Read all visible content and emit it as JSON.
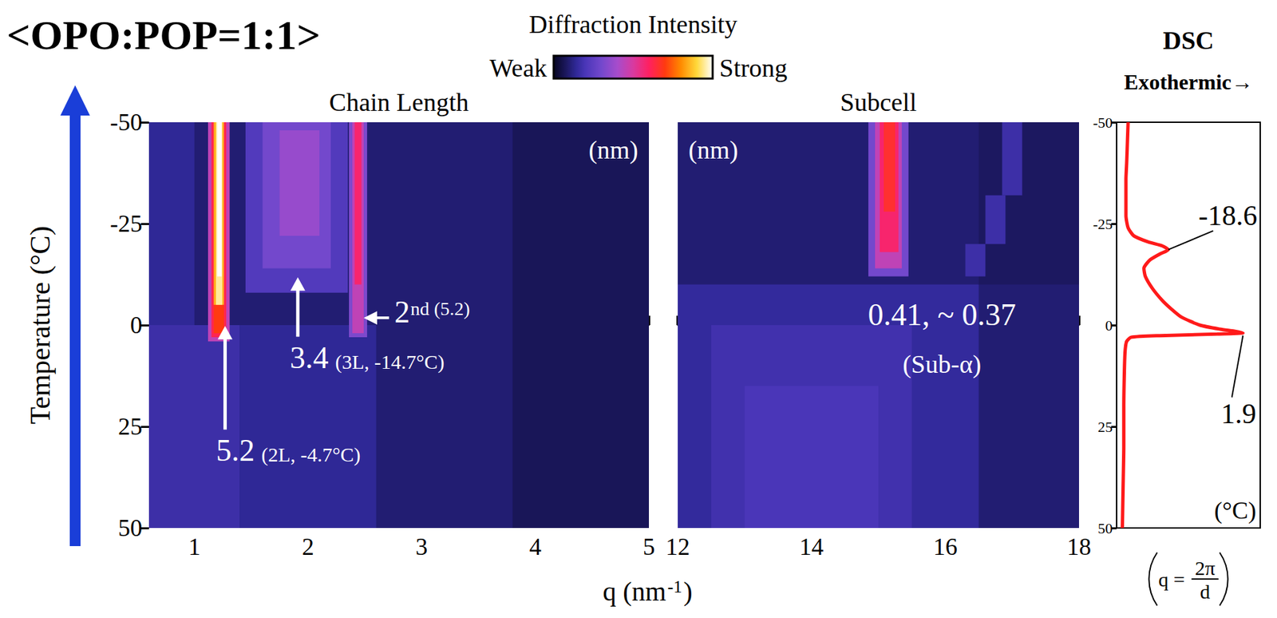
{
  "title": "<OPO:POP=1:1>",
  "color_bar": {
    "label": "Diffraction Intensity",
    "min_label": "Weak",
    "max_label": "Strong",
    "range": [
      0,
      1
    ]
  },
  "xlabel": [
    "q (nm",
    "-1",
    ")"
  ],
  "formula": {
    "lhs": "q =",
    "numerator": "2π",
    "denominator": "d"
  },
  "chart_data": [
    {
      "type": "heatmap",
      "title": "Chain Length",
      "unit_label": "(nm)",
      "ylabel": "Temperature (°C)",
      "xlim": [
        0.6,
        5.0
      ],
      "xticks": [
        1,
        2,
        3,
        4,
        5
      ],
      "ylim": [
        50,
        -50
      ],
      "yticks": [
        -50,
        -25,
        0,
        25,
        50
      ],
      "cells": [
        [
          0.6,
          5.0,
          -50,
          50,
          0.1
        ],
        [
          0.6,
          1.4,
          0,
          50,
          0.17
        ],
        [
          1.4,
          2.6,
          0,
          50,
          0.14
        ],
        [
          3.8,
          5.0,
          -50,
          50,
          0.07
        ],
        [
          0.6,
          1.0,
          -50,
          0,
          0.14
        ],
        [
          1.45,
          2.35,
          -8,
          -50,
          0.22
        ],
        [
          1.6,
          2.2,
          -14,
          -50,
          0.3
        ],
        [
          1.75,
          2.1,
          -22,
          -48,
          0.37
        ],
        [
          2.36,
          2.52,
          3,
          -50,
          0.32
        ],
        [
          2.39,
          2.49,
          2,
          -50,
          0.45
        ],
        [
          2.41,
          2.47,
          -10,
          -50,
          0.58
        ],
        [
          1.12,
          1.31,
          4,
          -50,
          0.45
        ],
        [
          1.15,
          1.28,
          3,
          -50,
          0.62
        ],
        [
          1.17,
          1.26,
          2,
          -5,
          0.7
        ],
        [
          1.17,
          1.26,
          -5,
          -50,
          0.85
        ],
        [
          1.19,
          1.245,
          -5,
          -50,
          0.95
        ],
        [
          1.2,
          1.24,
          -12,
          -50,
          1.0
        ]
      ],
      "annotations": [
        {
          "text": "5.2",
          "note": "(2L, -4.7°C)",
          "q": 1.19,
          "temperature": 34.7,
          "points_to": [
            1.27,
            0.2
          ]
        },
        {
          "text": "3.4",
          "note": "(3L, -14.7°C)",
          "q": 1.84,
          "temperature": 11.8,
          "points_to": [
            1.91,
            -11.8
          ]
        },
        {
          "text": "2",
          "superscript": "nd",
          "note": "(5.2)",
          "q": 2.76,
          "temperature": 0.6,
          "points_to": [
            2.49,
            -1.8
          ]
        }
      ]
    },
    {
      "type": "heatmap",
      "title": "Subcell",
      "unit_label": "(nm)",
      "xlim": [
        12,
        18
      ],
      "xticks": [
        12,
        14,
        16,
        18
      ],
      "ylim": [
        50,
        -50
      ],
      "tick_labels": "x",
      "cells": [
        [
          12,
          18,
          -50,
          50,
          0.1
        ],
        [
          12,
          16.5,
          -10,
          50,
          0.15
        ],
        [
          12.5,
          15.5,
          0,
          50,
          0.18
        ],
        [
          16.5,
          18,
          -50,
          -10,
          0.08
        ],
        [
          13.0,
          15.0,
          15,
          50,
          0.2
        ],
        [
          14.85,
          15.45,
          -12,
          -50,
          0.3
        ],
        [
          14.95,
          15.35,
          -14,
          -50,
          0.45
        ],
        [
          15.02,
          15.3,
          -18,
          -50,
          0.58
        ],
        [
          15.08,
          15.25,
          -28,
          -50,
          0.66
        ],
        [
          16.3,
          16.6,
          -12,
          -20,
          0.17
        ],
        [
          16.6,
          16.9,
          -20,
          -32,
          0.17
        ],
        [
          16.85,
          17.15,
          -32,
          -50,
          0.17
        ]
      ],
      "annotations": [
        {
          "text": "0.41, ~ 0.37",
          "q": 15.95,
          "temperature": 1.2
        },
        {
          "text": "(Sub-α)",
          "q": 15.95,
          "temperature": 12.7
        }
      ]
    },
    {
      "type": "line",
      "title": "DSC",
      "subtitle": "Exothermic→",
      "unit_label": "(°C)",
      "color": "#ff1a1a",
      "xlim": [
        0,
        1
      ],
      "ylim": [
        50,
        -50
      ],
      "yticks": [
        -50,
        -25,
        0,
        25,
        50
      ],
      "tick_labels": "y",
      "temperature": [
        50,
        40,
        30,
        20,
        10,
        6,
        4,
        3,
        2.6,
        2.2,
        1.9,
        1.5,
        1,
        0,
        -2,
        -4,
        -6,
        -9,
        -12,
        -14,
        -16,
        -17.5,
        -18.6,
        -19.5,
        -20.5,
        -22,
        -24,
        -27,
        -32,
        -36,
        -40,
        -45,
        -50
      ],
      "heat_flow": [
        0.04,
        0.045,
        0.05,
        0.05,
        0.055,
        0.06,
        0.07,
        0.1,
        0.3,
        0.7,
        0.88,
        0.82,
        0.72,
        0.58,
        0.45,
        0.38,
        0.32,
        0.25,
        0.2,
        0.19,
        0.23,
        0.3,
        0.36,
        0.32,
        0.22,
        0.12,
        0.08,
        0.065,
        0.065,
        0.065,
        0.07,
        0.075,
        0.08
      ],
      "annotations": [
        {
          "text": "-18.6",
          "temperature": -18.6
        },
        {
          "text": "1.9",
          "temperature": 1.9
        }
      ]
    }
  ]
}
